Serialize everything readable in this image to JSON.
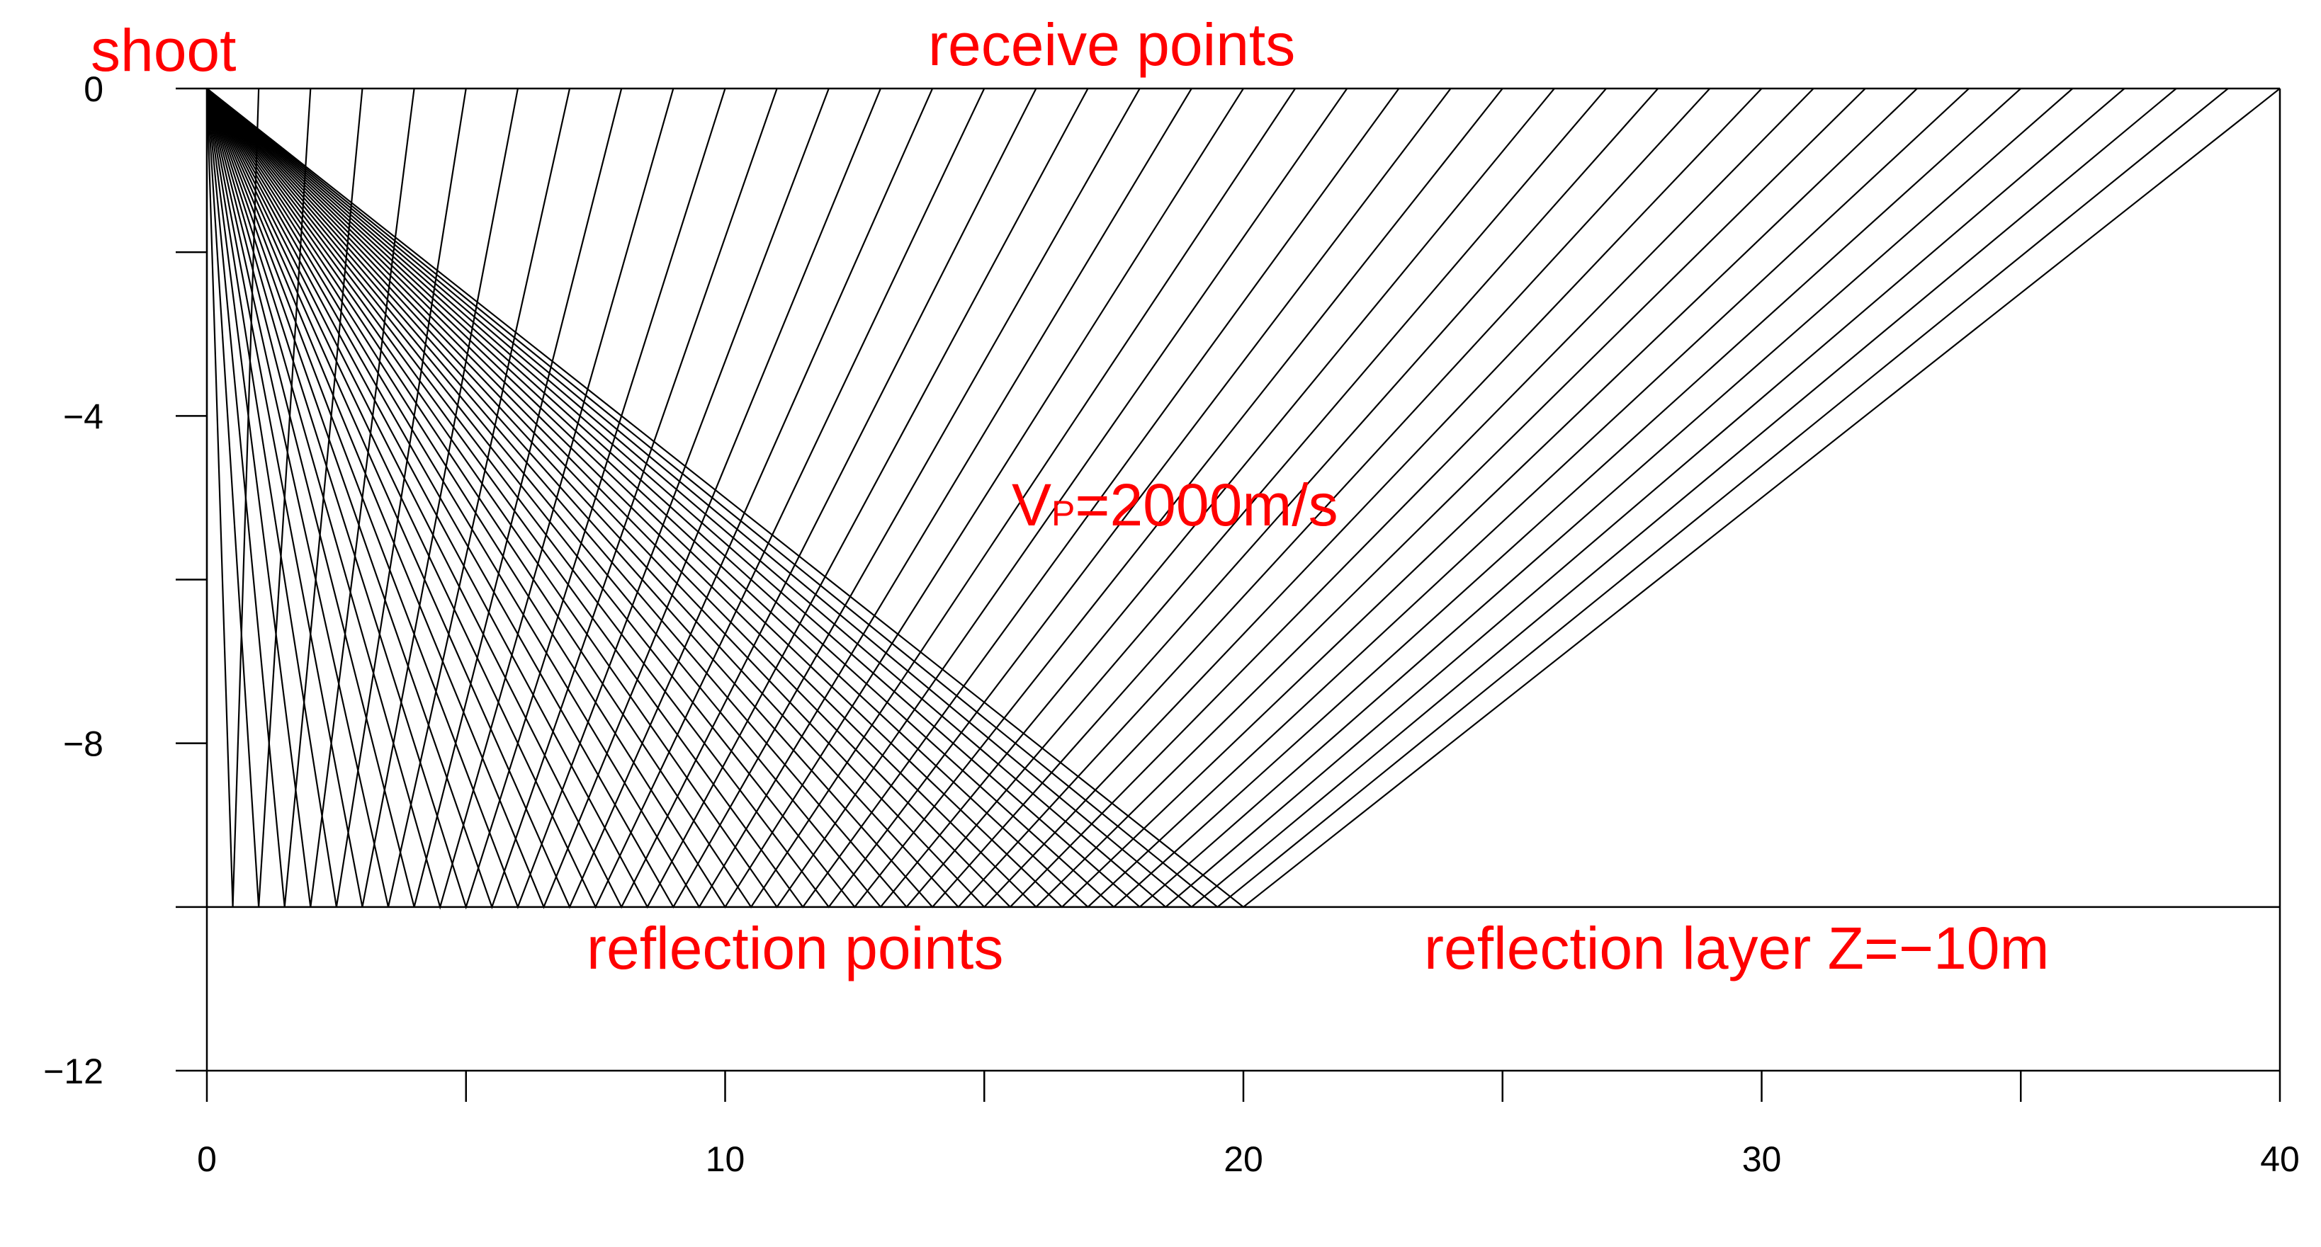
{
  "chart_data": {
    "type": "diagram",
    "title": "",
    "xlabel": "",
    "ylabel": "",
    "xlim": [
      0,
      40
    ],
    "ylim": [
      -12,
      0
    ],
    "x_ticks": [
      0,
      10,
      20,
      30,
      40
    ],
    "x_minor_ticks": [
      5,
      15,
      25,
      35
    ],
    "y_ticks": [
      0,
      -4,
      -8,
      -12
    ],
    "y_minor_ticks": [
      -2,
      -6,
      -10
    ],
    "shot": {
      "x": 0,
      "z": 0
    },
    "reflector_depth": -10,
    "receivers": [
      0,
      1,
      2,
      3,
      4,
      5,
      6,
      7,
      8,
      9,
      10,
      11,
      12,
      13,
      14,
      15,
      16,
      17,
      18,
      19,
      20,
      21,
      22,
      23,
      24,
      25,
      26,
      27,
      28,
      29,
      30,
      31,
      32,
      33,
      34,
      35,
      36,
      37,
      38,
      39,
      40
    ],
    "annotations": {
      "shoot": "shoot",
      "receive_points": "receive points",
      "velocity_prefix": "V",
      "velocity_sub": "P",
      "velocity_value": "=2000m/s",
      "reflection_points": "reflection points",
      "reflection_layer": "reflection layer Z=−10m"
    },
    "tick_labels": {
      "x": [
        "0",
        "10",
        "20",
        "30",
        "40"
      ],
      "y": [
        "0",
        "−4",
        "−8",
        "−12"
      ]
    },
    "colors": {
      "annotation": "#ff0000",
      "rays": "#000000"
    }
  }
}
